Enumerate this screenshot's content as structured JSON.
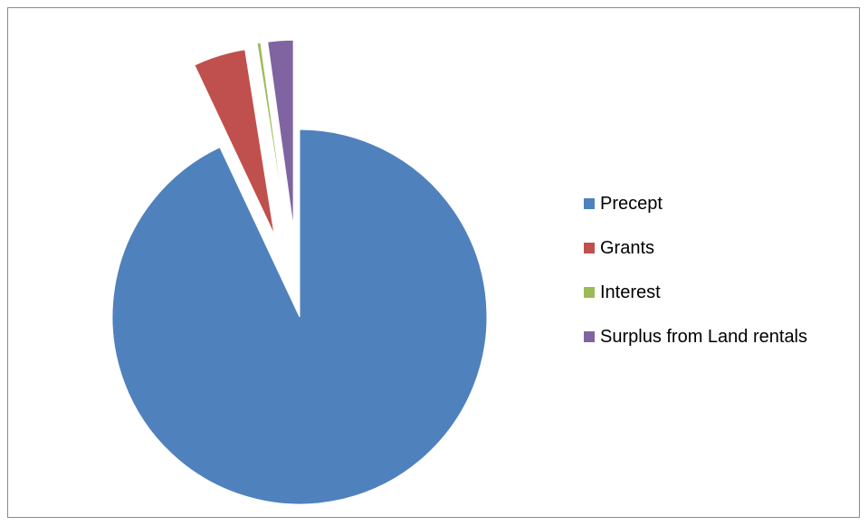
{
  "chart_data": {
    "type": "pie",
    "exploded": true,
    "series": [
      {
        "name": "Precept",
        "value": 93.0,
        "color": "#4F81BD"
      },
      {
        "name": "Grants",
        "value": 4.5,
        "color": "#C0504D"
      },
      {
        "name": "Interest",
        "value": 0.3,
        "color": "#9BBB59"
      },
      {
        "name": "Surplus from Land rentals",
        "value": 2.2,
        "color": "#8064A2"
      }
    ],
    "legend": {
      "placement": "right",
      "items": [
        "Precept",
        "Grants",
        "Interest",
        "Surplus from Land rentals"
      ]
    }
  }
}
